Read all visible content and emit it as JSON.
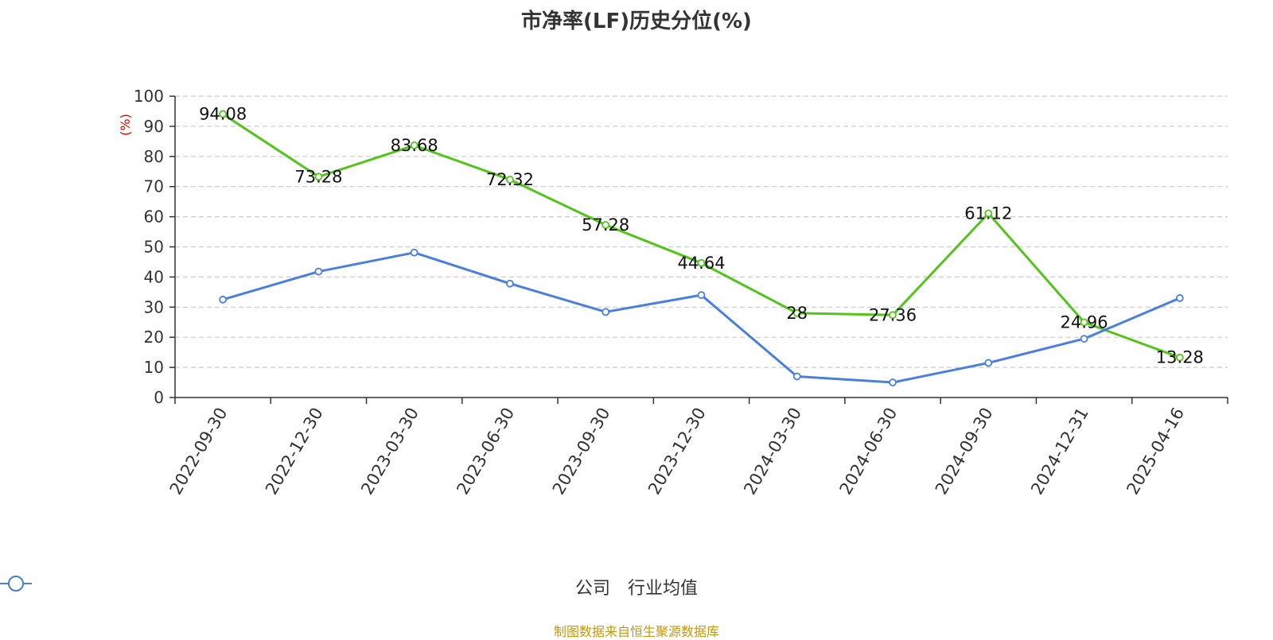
{
  "chart_data": {
    "type": "line",
    "title": "市净率(LF)历史分位(%)",
    "ylabel": "(%)",
    "ylim": [
      0,
      100
    ],
    "yticks": [
      0,
      10,
      20,
      30,
      40,
      50,
      60,
      70,
      80,
      90,
      100
    ],
    "grid": true,
    "legend_position": "bottom-center",
    "categories": [
      "2022-09-30",
      "2022-12-30",
      "2023-03-30",
      "2023-06-30",
      "2023-09-30",
      "2023-12-30",
      "2024-03-30",
      "2024-06-30",
      "2024-09-30",
      "2024-12-31",
      "2025-04-16"
    ],
    "series": [
      {
        "name": "公司",
        "color": "#52c41a",
        "show_labels": true,
        "values": [
          94.08,
          73.28,
          83.68,
          72.32,
          57.28,
          44.64,
          28,
          27.36,
          61.12,
          24.96,
          13.28
        ]
      },
      {
        "name": "行业均值",
        "color": "#4a7fde",
        "show_labels": false,
        "values": [
          32.5,
          41.8,
          48.1,
          37.8,
          28.4,
          34.0,
          7.0,
          5.0,
          11.5,
          19.5,
          33.0
        ]
      }
    ]
  },
  "source_text": "制图数据来自恒生聚源数据库",
  "source_color": "#c8960a",
  "axis_label_color": "#e00000"
}
